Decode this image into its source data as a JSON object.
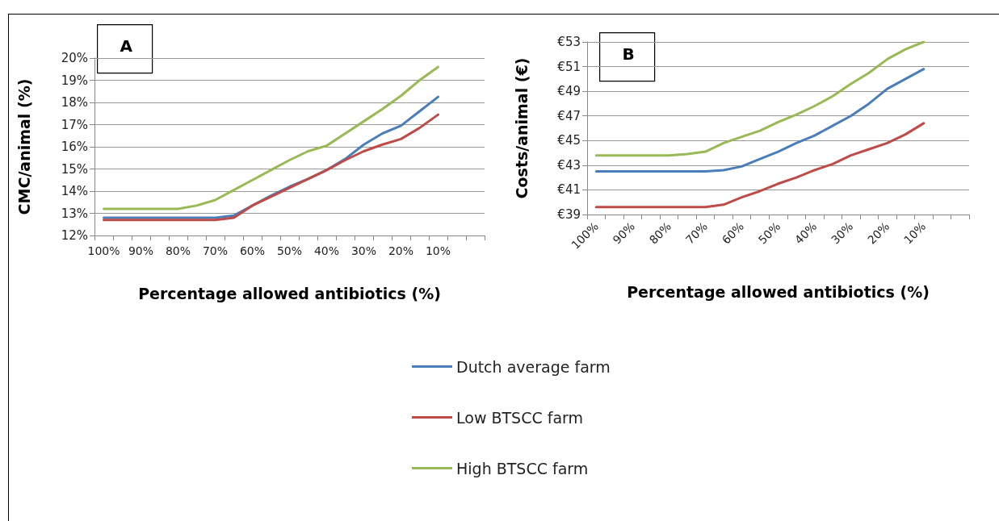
{
  "chart_data": [
    {
      "type": "line",
      "xlabel": "Percentage allowed antibiotics (%)",
      "ylabel": "CMC/animal (%)",
      "annotations": [
        "A"
      ],
      "categories": [
        "100%",
        null,
        "90%",
        null,
        "80%",
        null,
        "70%",
        null,
        "60%",
        null,
        "50%",
        null,
        "40%",
        null,
        "30%",
        null,
        "20%",
        null,
        "10%",
        null,
        null
      ],
      "series": [
        {
          "name": "Dutch average farm",
          "color": "#4a7ebb",
          "values": [
            12.8,
            12.8,
            12.8,
            12.8,
            12.8,
            12.8,
            12.8,
            12.9,
            13.35,
            13.8,
            14.2,
            14.55,
            14.95,
            15.45,
            16.1,
            16.6,
            16.95,
            17.6,
            18.25,
            null,
            null
          ]
        },
        {
          "name": "Low BTSCC farm",
          "color": "#be4b48",
          "values": [
            12.7,
            12.7,
            12.7,
            12.7,
            12.7,
            12.7,
            12.7,
            12.8,
            13.35,
            13.75,
            14.15,
            14.55,
            14.95,
            15.4,
            15.8,
            16.1,
            16.35,
            16.85,
            17.45,
            null,
            null
          ]
        },
        {
          "name": "High BTSCC farm",
          "color": "#98b954",
          "values": [
            13.2,
            13.2,
            13.2,
            13.2,
            13.2,
            13.35,
            13.6,
            14.05,
            14.5,
            14.95,
            15.4,
            15.8,
            16.05,
            16.6,
            17.15,
            17.7,
            18.3,
            19.0,
            19.6,
            null,
            null
          ]
        }
      ],
      "ylim": [
        12,
        20
      ],
      "yticks": [
        {
          "value": 12,
          "label": "12%"
        },
        {
          "value": 13,
          "label": "13%"
        },
        {
          "value": 14,
          "label": "14%"
        },
        {
          "value": 15,
          "label": "15%"
        },
        {
          "value": 16,
          "label": "16%"
        },
        {
          "value": 17,
          "label": "17%"
        },
        {
          "value": 18,
          "label": "18%"
        },
        {
          "value": 19,
          "label": "19%"
        },
        {
          "value": 20,
          "label": "20%"
        }
      ],
      "grid": "y",
      "legend": "bottom",
      "line_style": "solid"
    },
    {
      "type": "line",
      "xlabel": "Percentage allowed antibiotics (%)",
      "ylabel": "Costs/animal (€)",
      "annotations": [
        "B"
      ],
      "categories": [
        "100%",
        null,
        "90%",
        null,
        "80%",
        null,
        "70%",
        null,
        "60%",
        null,
        "50%",
        null,
        "40%",
        null,
        "30%",
        null,
        "20%",
        null,
        "10%",
        null,
        null
      ],
      "series": [
        {
          "name": "Dutch average farm",
          "color": "#4a7ebb",
          "values": [
            42.5,
            42.5,
            42.5,
            42.5,
            42.5,
            42.5,
            42.5,
            42.6,
            42.9,
            43.5,
            44.1,
            44.8,
            45.4,
            46.2,
            47.0,
            48.0,
            49.2,
            50.0,
            50.8,
            null,
            null
          ]
        },
        {
          "name": "Low BTSCC farm",
          "color": "#be4b48",
          "values": [
            39.6,
            39.6,
            39.6,
            39.6,
            39.6,
            39.6,
            39.6,
            39.8,
            40.4,
            40.9,
            41.5,
            42.0,
            42.6,
            43.1,
            43.8,
            44.3,
            44.8,
            45.5,
            46.4,
            null,
            null
          ]
        },
        {
          "name": "High BTSCC farm",
          "color": "#98b954",
          "values": [
            43.8,
            43.8,
            43.8,
            43.8,
            43.8,
            43.9,
            44.1,
            44.8,
            45.3,
            45.8,
            46.5,
            47.1,
            47.8,
            48.6,
            49.6,
            50.5,
            51.6,
            52.4,
            53.0,
            null,
            null
          ]
        }
      ],
      "ylim": [
        39,
        53
      ],
      "yticks": [
        {
          "value": 39,
          "label": "€39"
        },
        {
          "value": 41,
          "label": "€41"
        },
        {
          "value": 43,
          "label": "€43"
        },
        {
          "value": 45,
          "label": "€45"
        },
        {
          "value": 47,
          "label": "€47"
        },
        {
          "value": 49,
          "label": "€49"
        },
        {
          "value": 51,
          "label": "€51"
        },
        {
          "value": 53,
          "label": "€53"
        }
      ],
      "grid": "y",
      "legend": "bottom",
      "line_style": "solid"
    }
  ]
}
